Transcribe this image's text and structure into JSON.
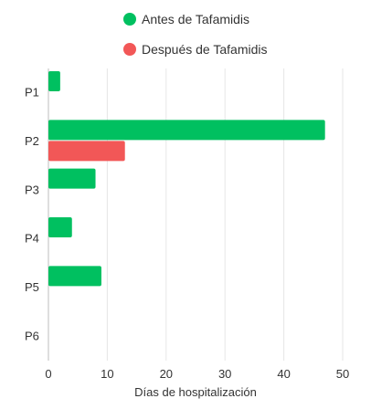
{
  "chart_data": {
    "type": "bar",
    "orientation": "horizontal",
    "categories": [
      "P1",
      "P2",
      "P3",
      "P4",
      "P5",
      "P6"
    ],
    "series": [
      {
        "name": "Antes de Tafamidis",
        "color": "#00c060",
        "values": [
          2,
          47,
          8,
          4,
          9,
          0
        ]
      },
      {
        "name": "Después de Tafamidis",
        "color": "#f25757",
        "values": [
          0,
          13,
          0,
          0,
          0,
          0
        ]
      }
    ],
    "xlabel": "Días de hospitalización",
    "ylabel": "",
    "xlim": [
      0,
      50
    ],
    "xticks": [
      0,
      10,
      20,
      30,
      40,
      50
    ],
    "grid": true,
    "legend_position": "top"
  }
}
